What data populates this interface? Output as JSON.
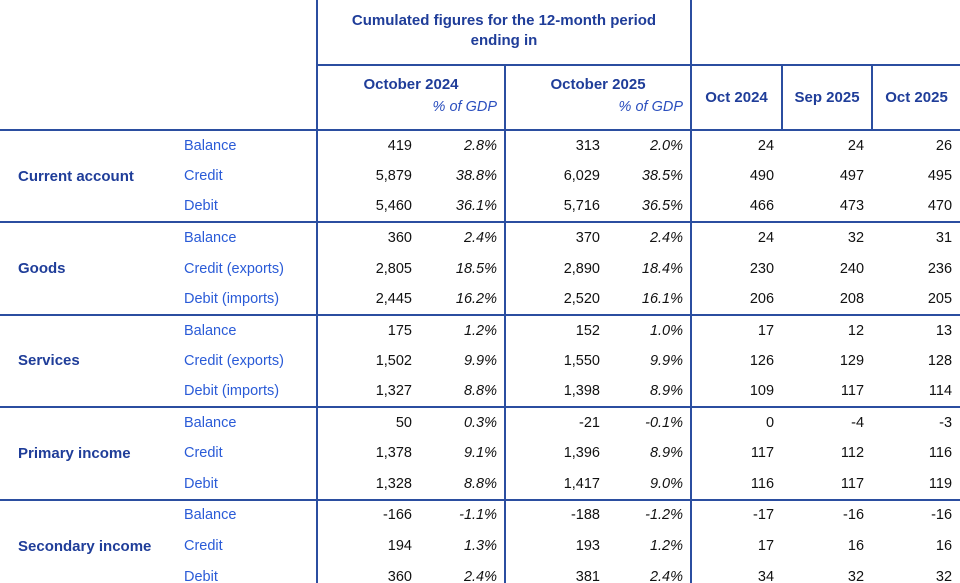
{
  "header": {
    "cumulated_title": "Cumulated figures for the 12-month period ending in",
    "period_columns": [
      {
        "label": "October 2024",
        "sub": "% of GDP"
      },
      {
        "label": "October 2025",
        "sub": "% of GDP"
      }
    ],
    "month_columns": [
      "Oct 2024",
      "Sep 2025",
      "Oct 2025"
    ]
  },
  "groups": [
    {
      "label": "Current account",
      "rows": [
        {
          "item": "Balance",
          "values": [
            "419",
            "2.8%",
            "313",
            "2.0%",
            "24",
            "24",
            "26"
          ]
        },
        {
          "item": "Credit",
          "values": [
            "5,879",
            "38.8%",
            "6,029",
            "38.5%",
            "490",
            "497",
            "495"
          ]
        },
        {
          "item": "Debit",
          "values": [
            "5,460",
            "36.1%",
            "5,716",
            "36.5%",
            "466",
            "473",
            "470"
          ]
        }
      ]
    },
    {
      "label": "Goods",
      "rows": [
        {
          "item": "Balance",
          "values": [
            "360",
            "2.4%",
            "370",
            "2.4%",
            "24",
            "32",
            "31"
          ]
        },
        {
          "item": "Credit (exports)",
          "values": [
            "2,805",
            "18.5%",
            "2,890",
            "18.4%",
            "230",
            "240",
            "236"
          ]
        },
        {
          "item": "Debit (imports)",
          "values": [
            "2,445",
            "16.2%",
            "2,520",
            "16.1%",
            "206",
            "208",
            "205"
          ]
        }
      ]
    },
    {
      "label": "Services",
      "rows": [
        {
          "item": "Balance",
          "values": [
            "175",
            "1.2%",
            "152",
            "1.0%",
            "17",
            "12",
            "13"
          ]
        },
        {
          "item": "Credit (exports)",
          "values": [
            "1,502",
            "9.9%",
            "1,550",
            "9.9%",
            "126",
            "129",
            "128"
          ]
        },
        {
          "item": "Debit (imports)",
          "values": [
            "1,327",
            "8.8%",
            "1,398",
            "8.9%",
            "109",
            "117",
            "114"
          ]
        }
      ]
    },
    {
      "label": "Primary income",
      "rows": [
        {
          "item": "Balance",
          "values": [
            "50",
            "0.3%",
            "-21",
            "-0.1%",
            "0",
            "-4",
            "-3"
          ]
        },
        {
          "item": "Credit",
          "values": [
            "1,378",
            "9.1%",
            "1,396",
            "8.9%",
            "117",
            "112",
            "116"
          ]
        },
        {
          "item": "Debit",
          "values": [
            "1,328",
            "8.8%",
            "1,417",
            "9.0%",
            "116",
            "117",
            "119"
          ]
        }
      ]
    },
    {
      "label": "Secondary income",
      "rows": [
        {
          "item": "Balance",
          "values": [
            "-166",
            "-1.1%",
            "-188",
            "-1.2%",
            "-17",
            "-16",
            "-16"
          ]
        },
        {
          "item": "Credit",
          "values": [
            "194",
            "1.3%",
            "193",
            "1.2%",
            "17",
            "16",
            "16"
          ]
        },
        {
          "item": "Debit",
          "values": [
            "360",
            "2.4%",
            "381",
            "2.4%",
            "34",
            "32",
            "32"
          ]
        }
      ]
    }
  ],
  "colors": {
    "border": "#2B4EA0",
    "header_text": "#1F3D99",
    "gdp_subheader_text": "#2B4FBE",
    "row_label_text": "#2A5BD7",
    "value_text": "#111111",
    "background": "#FFFFFF"
  }
}
